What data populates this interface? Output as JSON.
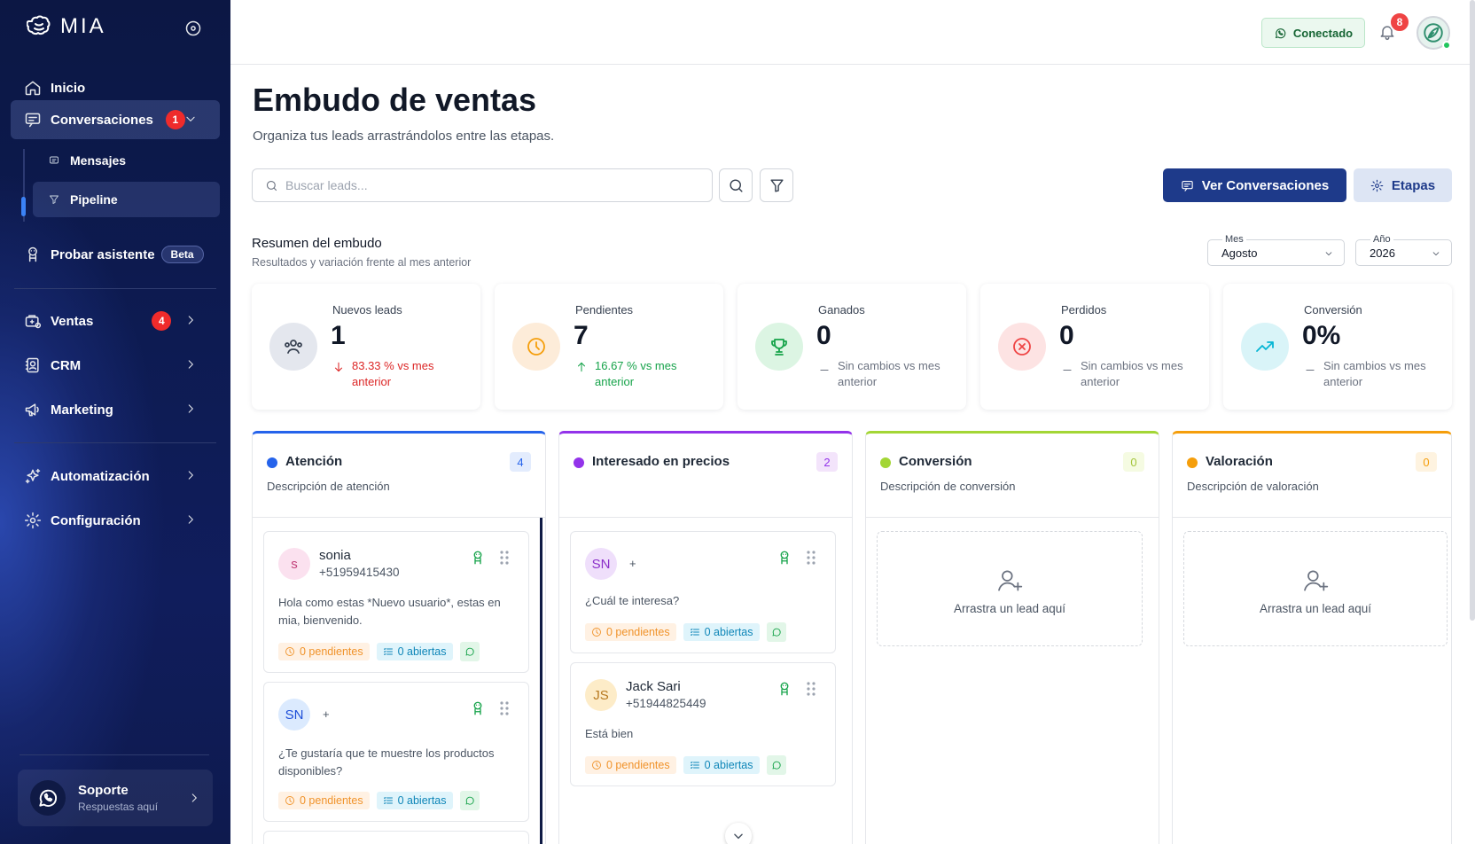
{
  "app": {
    "name": "MIA"
  },
  "sidebar": {
    "items": [
      {
        "label": "Inicio",
        "icon": "home-icon"
      },
      {
        "label": "Conversaciones",
        "icon": "chat-icon",
        "badge": "1",
        "expanded": true,
        "children": [
          {
            "label": "Mensajes",
            "icon": "message-icon"
          },
          {
            "label": "Pipeline",
            "icon": "funnel-icon",
            "active": true
          }
        ]
      },
      {
        "label": "Probar asistente",
        "icon": "bot-icon",
        "tag": "Beta"
      },
      {
        "label": "Ventas",
        "icon": "sales-icon",
        "badge": "4"
      },
      {
        "label": "CRM",
        "icon": "contacts-icon"
      },
      {
        "label": "Marketing",
        "icon": "megaphone-icon"
      },
      {
        "label": "Automatización",
        "icon": "sparkles-icon"
      },
      {
        "label": "Configuración",
        "icon": "gear-icon"
      }
    ],
    "support": {
      "title": "Soporte",
      "subtitle": "Respuestas aquí",
      "icon": "whatsapp-icon"
    }
  },
  "topbar": {
    "connection_label": "Conectado",
    "notification_count": "8"
  },
  "page": {
    "title": "Embudo de ventas",
    "subtitle": "Organiza tus leads arrastrándolos entre las etapas."
  },
  "toolbar": {
    "search_placeholder": "Buscar leads...",
    "view_conversations_label": "Ver Conversaciones",
    "stages_label": "Etapas"
  },
  "summary": {
    "title": "Resumen del embudo",
    "subtitle": "Resultados y variación frente al mes anterior",
    "month": {
      "label": "Mes",
      "value": "Agosto"
    },
    "year": {
      "label": "Año",
      "value": "2026"
    },
    "stats": [
      {
        "label": "Nuevos leads",
        "value": "1",
        "change": "83.33 % vs mes anterior",
        "trend": "down",
        "icon": "users-icon",
        "color": "#6b7280"
      },
      {
        "label": "Pendientes",
        "value": "7",
        "change": "16.67 % vs mes anterior",
        "trend": "up",
        "icon": "clock-icon",
        "color": "#f59e0b"
      },
      {
        "label": "Ganados",
        "value": "0",
        "change": "Sin cambios vs mes anterior",
        "trend": "none",
        "icon": "trophy-icon",
        "color": "#16a34a"
      },
      {
        "label": "Perdidos",
        "value": "0",
        "change": "Sin cambios vs mes anterior",
        "trend": "none",
        "icon": "x-circle-icon",
        "color": "#ef4444"
      },
      {
        "label": "Conversión",
        "value": "0%",
        "change": "Sin cambios vs mes anterior",
        "trend": "none",
        "icon": "trending-up-icon",
        "color": "#06b6d4"
      }
    ]
  },
  "columns": [
    {
      "title": "Atención",
      "count": "4",
      "description": "Descripción de atención",
      "color": "#2563eb",
      "leads": [
        {
          "initials": "s",
          "name": "sonia",
          "phone": "+51959415430",
          "message": "Hola como estas *Nuevo usuario*, estas en mia, bienvenido.",
          "pending": "0 pendientes",
          "open": "0 abiertas"
        },
        {
          "initials": "SN",
          "name": "",
          "phone": "+",
          "message": "¿Te gustaría que te muestre los productos disponibles?",
          "pending": "0 pendientes",
          "open": "0 abiertas"
        }
      ]
    },
    {
      "title": "Interesado en precios",
      "count": "2",
      "description": "",
      "color": "#9333ea",
      "leads": [
        {
          "initials": "SN",
          "name": "",
          "phone": "+",
          "message": "¿Cuál te interesa?",
          "pending": "0 pendientes",
          "open": "0 abiertas"
        },
        {
          "initials": "JS",
          "name": "Jack Sari",
          "phone": "+51944825449",
          "message": "Está bien",
          "pending": "0 pendientes",
          "open": "0 abiertas"
        }
      ]
    },
    {
      "title": "Conversión",
      "count": "0",
      "description": "Descripción de conversión",
      "color": "#a3d635",
      "empty_text": "Arrastra un lead aquí"
    },
    {
      "title": "Valoración",
      "count": "0",
      "description": "Descripción de valoración",
      "color": "#f59e0b",
      "empty_text": "Arrastra un lead aquí"
    }
  ]
}
